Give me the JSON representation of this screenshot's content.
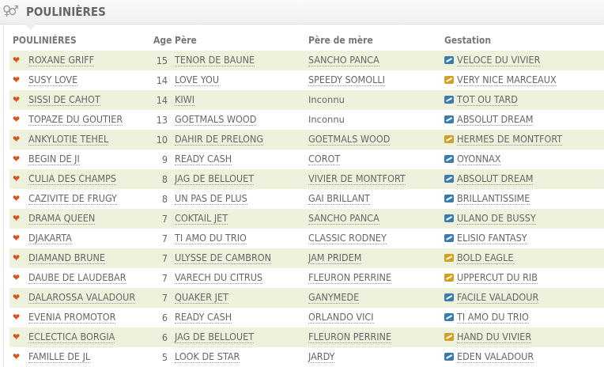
{
  "title": "POULINIÈRES",
  "icon": "female-male-icon",
  "colors": {
    "heart": "#d9541a",
    "gestation_blue": "#3b7cb0",
    "gestation_gold": "#d2a024",
    "row_alt": "#eef2dc"
  },
  "headers": {
    "name": "POULINIÉRES",
    "age": "Age",
    "pere": "Père",
    "pdm": "Père de mère",
    "gestation": "Gestation"
  },
  "rows": [
    {
      "name": "ROXANE GRIFF",
      "age": "15",
      "pere": "TENOR DE BAUNE",
      "pdm": "SANCHO PANCA",
      "gestation": "VELOCE DU VIVIER",
      "gcolor": "blue"
    },
    {
      "name": "SUSY LOVE",
      "age": "14",
      "pere": "LOVE YOU",
      "pdm": "SPEEDY SOMOLLI",
      "gestation": "VERY NICE MARCEAUX",
      "gcolor": "gold"
    },
    {
      "name": "SISSI DE CAHOT",
      "age": "14",
      "pere": "KIWI",
      "pdm": "Inconnu",
      "gestation": "TOT OU TARD",
      "gcolor": "blue"
    },
    {
      "name": "TOPAZE DU GOUTIER",
      "age": "13",
      "pere": "GOETMALS WOOD",
      "pdm": "Inconnu",
      "gestation": "ABSOLUT DREAM",
      "gcolor": "blue"
    },
    {
      "name": "ANKYLOTIE TEHEL",
      "age": "10",
      "pere": "DAHIR DE PRELONG",
      "pdm": "GOETMALS WOOD",
      "gestation": "HERMES DE MONTFORT",
      "gcolor": "gold"
    },
    {
      "name": "BEGIN DE JI",
      "age": "9",
      "pere": "READY CASH",
      "pdm": "COROT",
      "gestation": "OYONNAX",
      "gcolor": "blue"
    },
    {
      "name": "CULIA DES CHAMPS",
      "age": "8",
      "pere": "JAG DE BELLOUET",
      "pdm": "VIVIER DE MONTFORT",
      "gestation": "ABSOLUT DREAM",
      "gcolor": "blue"
    },
    {
      "name": "CAZIVITE DE FRUGY",
      "age": "8",
      "pere": "UN PAS DE PLUS",
      "pdm": "GAI BRILLANT",
      "gestation": "BRILLANTISSIME",
      "gcolor": "blue"
    },
    {
      "name": "DRAMA QUEEN",
      "age": "7",
      "pere": "COKTAIL JET",
      "pdm": "SANCHO PANCA",
      "gestation": "ULANO DE BUSSY",
      "gcolor": "blue"
    },
    {
      "name": "DJAKARTA",
      "age": "7",
      "pere": "TI AMO DU TRIO",
      "pdm": "CLASSIC RODNEY",
      "gestation": "ELISIO FANTASY",
      "gcolor": "blue"
    },
    {
      "name": "DIAMAND BRUNE",
      "age": "7",
      "pere": "ULYSSE DE CAMBRON",
      "pdm": "JAM PRIDEM",
      "gestation": "BOLD EAGLE",
      "gcolor": "gold"
    },
    {
      "name": "DAUBE DE LAUDEBAR",
      "age": "7",
      "pere": "VARECH DU CITRUS",
      "pdm": "FLEURON PERRINE",
      "gestation": "UPPERCUT DU RIB",
      "gcolor": "gold"
    },
    {
      "name": "DALAROSSA VALADOUR",
      "age": "7",
      "pere": "QUAKER JET",
      "pdm": "GANYMEDE",
      "gestation": "FACILE VALADOUR",
      "gcolor": "blue"
    },
    {
      "name": "EVENIA PROMOTOR",
      "age": "6",
      "pere": "READY CASH",
      "pdm": "ORLANDO VICI",
      "gestation": "TI AMO DU TRIO",
      "gcolor": "blue"
    },
    {
      "name": "ECLECTICA BORGIA",
      "age": "6",
      "pere": "JAG DE BELLOUET",
      "pdm": "FLEURON PERRINE",
      "gestation": "HAND DU VIVIER",
      "gcolor": "gold"
    },
    {
      "name": "FAMILLE DE JL",
      "age": "5",
      "pere": "LOOK DE STAR",
      "pdm": "JARDY",
      "gestation": "EDEN VALADOUR",
      "gcolor": "blue"
    }
  ]
}
